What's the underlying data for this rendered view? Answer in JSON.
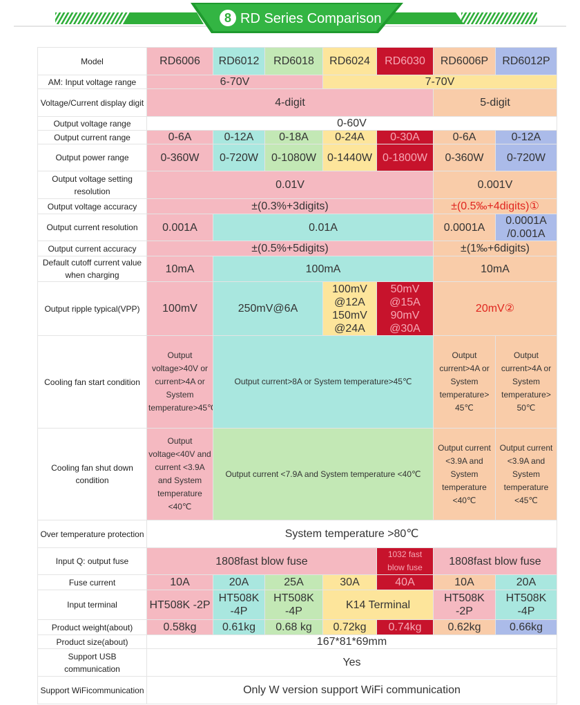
{
  "header": {
    "badge": "8",
    "title": "RD Series Comparison"
  },
  "table": {
    "rows": [
      {
        "label": "Model",
        "cells": [
          {
            "text": "RD6006",
            "tone": "pink"
          },
          {
            "text": "RD6012",
            "tone": "teal"
          },
          {
            "text": "RD6018",
            "tone": "green"
          },
          {
            "text": "RD6024",
            "tone": "yellow"
          },
          {
            "text": "RD6030",
            "tone": "red"
          },
          {
            "text": "RD6006P",
            "tone": "peach"
          },
          {
            "text": "RD6012P",
            "tone": "blue"
          }
        ]
      },
      {
        "label": "AM: Input voltage range",
        "cells": [
          {
            "text": "6-70V",
            "tone": "pink",
            "span": 3
          },
          {
            "text": "7-70V",
            "tone": "yellow",
            "span": 4
          }
        ]
      },
      {
        "label": "Voltage/Current display digit",
        "cells": [
          {
            "text": "4-digit",
            "tone": "pink",
            "span": 5
          },
          {
            "text": "5-digit",
            "tone": "peach",
            "span": 2
          }
        ]
      },
      {
        "label": "Output voltage range",
        "cells": [
          {
            "text": "0-60V",
            "tone": "white",
            "span": 7
          }
        ]
      },
      {
        "label": "Output current range",
        "cells": [
          {
            "text": "0-6A",
            "tone": "pink"
          },
          {
            "text": "0-12A",
            "tone": "teal"
          },
          {
            "text": "0-18A",
            "tone": "green"
          },
          {
            "text": "0-24A",
            "tone": "yellow"
          },
          {
            "text": "0-30A",
            "tone": "red"
          },
          {
            "text": "0-6A",
            "tone": "peach"
          },
          {
            "text": "0-12A",
            "tone": "blue"
          }
        ]
      },
      {
        "label": "Output power range",
        "cells": [
          {
            "text": "0-360W",
            "tone": "pink"
          },
          {
            "text": "0-720W",
            "tone": "teal"
          },
          {
            "text": "0-1080W",
            "tone": "green"
          },
          {
            "text": "0-1440W",
            "tone": "yellow"
          },
          {
            "text": "0-1800W",
            "tone": "red"
          },
          {
            "text": "0-360W",
            "tone": "peach"
          },
          {
            "text": "0-720W",
            "tone": "blue"
          }
        ]
      },
      {
        "label": "Output voltage setting resolution",
        "cells": [
          {
            "text": "0.01V",
            "tone": "pink",
            "span": 5
          },
          {
            "text": "0.001V",
            "tone": "peach",
            "span": 2
          }
        ]
      },
      {
        "label": "Output voltage accuracy",
        "cells": [
          {
            "text": "±(0.3%+3digits)",
            "tone": "pink",
            "span": 5
          },
          {
            "text": "±(0.5‰+4digits)①",
            "tone": "peach-note",
            "span": 2
          }
        ]
      },
      {
        "label": "Output current resolution",
        "cells": [
          {
            "text": "0.001A",
            "tone": "pink"
          },
          {
            "text": "0.01A",
            "tone": "teal",
            "span": 4
          },
          {
            "text": "0.0001A",
            "tone": "peach"
          },
          {
            "text": "0.0001A /0.001A",
            "tone": "blue"
          }
        ]
      },
      {
        "label": "Output current accuracy",
        "cells": [
          {
            "text": "±(0.5%+5digits)",
            "tone": "pink",
            "span": 5
          },
          {
            "text": "±(1‰+6digits)",
            "tone": "peach",
            "span": 2
          }
        ]
      },
      {
        "label": "Default cutoff current value when charging",
        "cells": [
          {
            "text": "10mA",
            "tone": "pink"
          },
          {
            "text": "100mA",
            "tone": "teal",
            "span": 4
          },
          {
            "text": "10mA",
            "tone": "peach",
            "span": 2
          }
        ]
      },
      {
        "label": "Output ripple typical(VPP)",
        "cells": [
          {
            "text": "100mV",
            "tone": "pink"
          },
          {
            "text": "250mV@6A",
            "tone": "teal",
            "span": 2
          },
          {
            "text": "100mV @12A 150mV @24A",
            "tone": "yellow"
          },
          {
            "text": "50mV @15A 90mV @30A",
            "tone": "red"
          },
          {
            "text": "20mV②",
            "tone": "peach-note",
            "span": 2
          }
        ]
      },
      {
        "label": "Cooling fan start condition",
        "cells": [
          {
            "text": "Output voltage>40V or current>4A or System temperature>45℃",
            "tone": "pink",
            "small": true
          },
          {
            "text": "Output current>8A or System temperature>45℃",
            "tone": "teal",
            "span": 4,
            "small": true
          },
          {
            "text": "Output current>4A or System temperature> 45℃",
            "tone": "peach",
            "small": true
          },
          {
            "text": "Output current>4A or System temperature> 50℃",
            "tone": "peach",
            "small": true
          }
        ]
      },
      {
        "label": "Cooling fan shut down condition",
        "cells": [
          {
            "text": "Output voltage<40V and current <3.9A and System temperature <40℃",
            "tone": "pink",
            "small": true
          },
          {
            "text": "Output current <7.9A and System temperature <40℃",
            "tone": "green",
            "span": 4,
            "small": true
          },
          {
            "text": "Output current <3.9A and System temperature <40℃",
            "tone": "peach",
            "small": true
          },
          {
            "text": "Output current <3.9A and System temperature <45℃",
            "tone": "peach",
            "small": true
          }
        ]
      },
      {
        "label": "Over temperature protection",
        "cells": [
          {
            "text": "System temperature >80℃",
            "tone": "white",
            "span": 7
          }
        ]
      },
      {
        "label": "Input Q: output fuse",
        "cells": [
          {
            "text": "1808fast blow fuse",
            "tone": "pink",
            "span": 4
          },
          {
            "text": "1032 fast blow fuse",
            "tone": "red",
            "small": true
          },
          {
            "text": "1808fast blow fuse",
            "tone": "pink",
            "span": 2
          }
        ]
      },
      {
        "label": "Fuse current",
        "cells": [
          {
            "text": "10A",
            "tone": "pink"
          },
          {
            "text": "20A",
            "tone": "teal"
          },
          {
            "text": "25A",
            "tone": "green"
          },
          {
            "text": "30A",
            "tone": "yellow"
          },
          {
            "text": "40A",
            "tone": "red"
          },
          {
            "text": "10A",
            "tone": "peach"
          },
          {
            "text": "20A",
            "tone": "teal"
          }
        ]
      },
      {
        "label": "Input terminal",
        "cells": [
          {
            "text": "HT508K -2P",
            "tone": "pink"
          },
          {
            "text": "HT508K -4P",
            "tone": "teal"
          },
          {
            "text": "HT508K -4P",
            "tone": "green"
          },
          {
            "text": "K14 Terminal",
            "tone": "yellow",
            "span": 2
          },
          {
            "text": "HT508K -2P",
            "tone": "pink"
          },
          {
            "text": "HT508K -4P",
            "tone": "teal"
          }
        ]
      },
      {
        "label": "Product weight(about)",
        "cells": [
          {
            "text": "0.58kg",
            "tone": "pink"
          },
          {
            "text": "0.61kg",
            "tone": "teal"
          },
          {
            "text": "0.68 kg",
            "tone": "green"
          },
          {
            "text": "0.72kg",
            "tone": "yellow"
          },
          {
            "text": "0.74kg",
            "tone": "red"
          },
          {
            "text": "0.62kg",
            "tone": "peach"
          },
          {
            "text": "0.66kg",
            "tone": "blue"
          }
        ]
      },
      {
        "label": "Product size(about)",
        "cells": [
          {
            "text": "167*81*69mm",
            "tone": "white",
            "span": 7
          }
        ]
      },
      {
        "label": "Support USB communication",
        "cells": [
          {
            "text": "Yes",
            "tone": "white",
            "span": 7
          }
        ]
      },
      {
        "label": "Support WiFicommunication",
        "cells": [
          {
            "text": "Only W version support WiFi communication",
            "tone": "white",
            "span": 7
          }
        ]
      }
    ]
  }
}
